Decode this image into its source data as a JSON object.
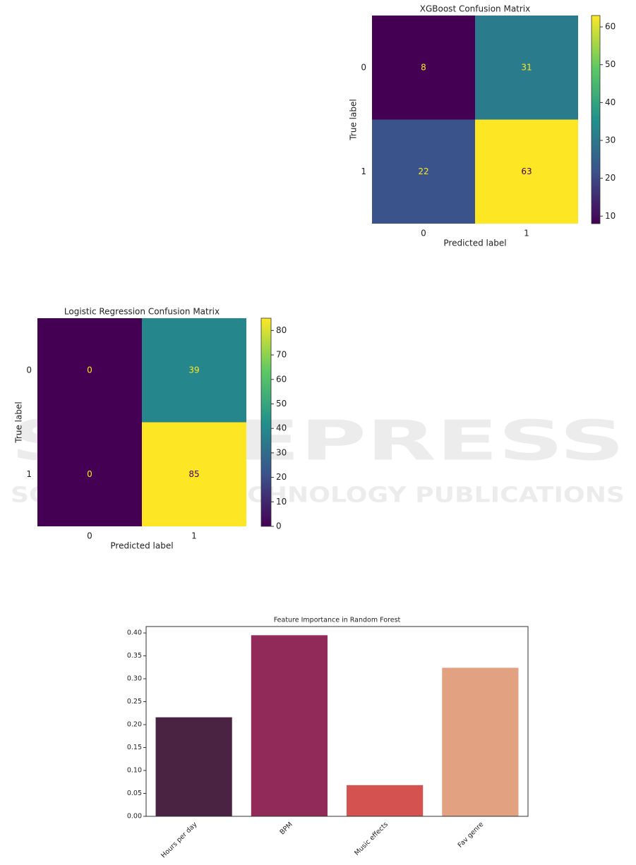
{
  "watermark": {
    "title": "SCITEPRESS",
    "subtitle": "SCIENCE AND TECHNOLOGY PUBLICATIONS"
  },
  "chart_data": [
    {
      "type": "heatmap",
      "title": "XGBoost Confusion Matrix",
      "xlabel": "Predicted label",
      "ylabel": "True label",
      "x_categories": [
        "0",
        "1"
      ],
      "y_categories": [
        "0",
        "1"
      ],
      "values": [
        [
          8,
          31
        ],
        [
          22,
          63
        ]
      ],
      "colormap": "viridis",
      "clim": [
        8,
        63
      ],
      "cticks": [
        10,
        20,
        30,
        40,
        50,
        60
      ]
    },
    {
      "type": "heatmap",
      "title": "Logistic Regression Confusion Matrix",
      "xlabel": "Predicted label",
      "ylabel": "True label",
      "x_categories": [
        "0",
        "1"
      ],
      "y_categories": [
        "0",
        "1"
      ],
      "values": [
        [
          0,
          39
        ],
        [
          0,
          85
        ]
      ],
      "colormap": "viridis",
      "clim": [
        0,
        85
      ],
      "cticks": [
        0,
        10,
        20,
        30,
        40,
        50,
        60,
        70,
        80
      ]
    },
    {
      "type": "bar",
      "title": "Feature Importance in Random Forest",
      "categories": [
        "Hours per day",
        "BPM",
        "Music effects",
        "Fav genre"
      ],
      "values": [
        0.216,
        0.395,
        0.068,
        0.324
      ],
      "colors": [
        "#4a2342",
        "#922a59",
        "#d4524f",
        "#e2a282"
      ],
      "ylim": [
        0,
        0.414
      ],
      "yticks": [
        {
          "value": 0,
          "label": "0.00"
        },
        {
          "value": 0.05,
          "label": "0.05"
        },
        {
          "value": 0.1,
          "label": "0.10"
        },
        {
          "value": 0.15,
          "label": "0.15"
        },
        {
          "value": 0.2,
          "label": "0.20"
        },
        {
          "value": 0.25,
          "label": "0.25"
        },
        {
          "value": 0.3,
          "label": "0.30"
        },
        {
          "value": 0.35,
          "label": "0.35"
        },
        {
          "value": 0.4,
          "label": "0.40"
        }
      ]
    }
  ]
}
